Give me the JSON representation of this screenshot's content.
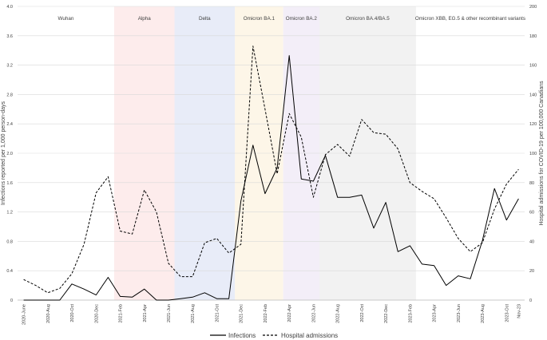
{
  "chart_data": {
    "type": "line",
    "title": "",
    "xlabel": "",
    "ylabel_left": "Infections reported per 1,000 person-days",
    "ylabel_right": "Hospital admissions for COVID-19 per 100,000 Canadians",
    "ylim_left": [
      0,
      4.0
    ],
    "ylim_right": [
      0,
      200
    ],
    "yticks_left": [
      "0",
      "0.4",
      "0.8",
      "1.2",
      "1.6",
      "2.0",
      "2.4",
      "2.8",
      "3.2",
      "3.6",
      "4.0"
    ],
    "yticks_right": [
      "0",
      "20",
      "40",
      "60",
      "80",
      "100",
      "120",
      "140",
      "160",
      "180",
      "200"
    ],
    "x_tick_labels": [
      "2020-June",
      "2020-Aug",
      "2020-Oct",
      "2020-Dec",
      "2021-Feb",
      "2021-Apr",
      "2021-Jun",
      "2021-Aug",
      "2021-Oct",
      "2021-Dec",
      "2022-Feb",
      "2022-Apr",
      "2022-Jun",
      "2022-Aug",
      "2022-Oct",
      "2022-Dec",
      "2023-Feb",
      "2023-Apr",
      "2023-Jun",
      "2023-Aug",
      "2023-Oct",
      "Nov-23"
    ],
    "x_tick_months": [
      0,
      2,
      4,
      6,
      8,
      10,
      12,
      14,
      16,
      18,
      20,
      22,
      24,
      26,
      28,
      30,
      32,
      34,
      36,
      38,
      40,
      41
    ],
    "x_max_month": 41,
    "periods": [
      {
        "label": "Wuhan",
        "start": -0.5,
        "end": 7.5,
        "color": "#ffffff"
      },
      {
        "label": "Alpha",
        "start": 7.5,
        "end": 12.5,
        "color": "#fdecec"
      },
      {
        "label": "Delta",
        "start": 12.5,
        "end": 17.5,
        "color": "#e8ecf8"
      },
      {
        "label": "Omicron BA.1",
        "start": 17.5,
        "end": 21.5,
        "color": "#fdf6e8"
      },
      {
        "label": "Omicron BA.2",
        "start": 21.5,
        "end": 24.5,
        "color": "#f3eef8"
      },
      {
        "label": "Omicron BA.4/BA.5",
        "start": 24.5,
        "end": 32.5,
        "color": "#f2f2f2"
      },
      {
        "label": "Omicron XBB, EG.5 & other recombinant variants",
        "start": 32.5,
        "end": 41.5,
        "color": "#ffffff"
      }
    ],
    "series": [
      {
        "name": "Infections",
        "axis": "left",
        "style": "solid",
        "months": [
          0,
          1,
          2,
          3,
          4,
          5,
          6,
          7,
          8,
          9,
          10,
          11,
          12,
          13,
          14,
          15,
          16,
          17,
          18,
          19,
          20,
          21,
          22,
          23,
          24,
          25,
          26,
          27,
          28,
          29,
          30,
          31,
          32,
          33,
          34,
          35,
          36,
          37,
          38,
          39,
          40,
          41
        ],
        "values": [
          0,
          0,
          0,
          0,
          0.22,
          0.15,
          0.07,
          0.31,
          0.05,
          0.04,
          0.15,
          0,
          0,
          0.02,
          0.04,
          0.1,
          0.02,
          0.02,
          1.35,
          2.11,
          1.45,
          1.8,
          3.33,
          1.65,
          1.62,
          1.97,
          1.4,
          1.4,
          1.43,
          0.98,
          1.33,
          0.66,
          0.74,
          0.49,
          0.47,
          0.2,
          0.33,
          0.29,
          0.81,
          1.52,
          1.09,
          1.38
        ]
      },
      {
        "name": "Hospital admissions",
        "axis": "right",
        "style": "dashed",
        "months": [
          0,
          1,
          2,
          3,
          4,
          5,
          6,
          7,
          8,
          9,
          10,
          11,
          12,
          13,
          14,
          15,
          16,
          17,
          18,
          19,
          20,
          21,
          22,
          23,
          24,
          25,
          26,
          27,
          28,
          29,
          30,
          31,
          32,
          33,
          34,
          35,
          36,
          37,
          38,
          39,
          40,
          41
        ],
        "values": [
          14,
          10,
          5,
          8,
          18,
          38,
          73,
          84,
          47,
          45,
          75,
          60,
          25,
          16,
          16,
          39,
          42,
          32,
          38,
          173,
          130,
          86,
          127,
          111,
          70,
          99,
          106,
          98,
          123,
          114,
          113,
          103,
          80,
          74,
          69,
          56,
          42,
          33,
          39,
          62,
          79,
          89
        ]
      }
    ],
    "legend": [
      "Infections",
      "Hospital admissions"
    ],
    "legend_position": "bottom-center"
  }
}
